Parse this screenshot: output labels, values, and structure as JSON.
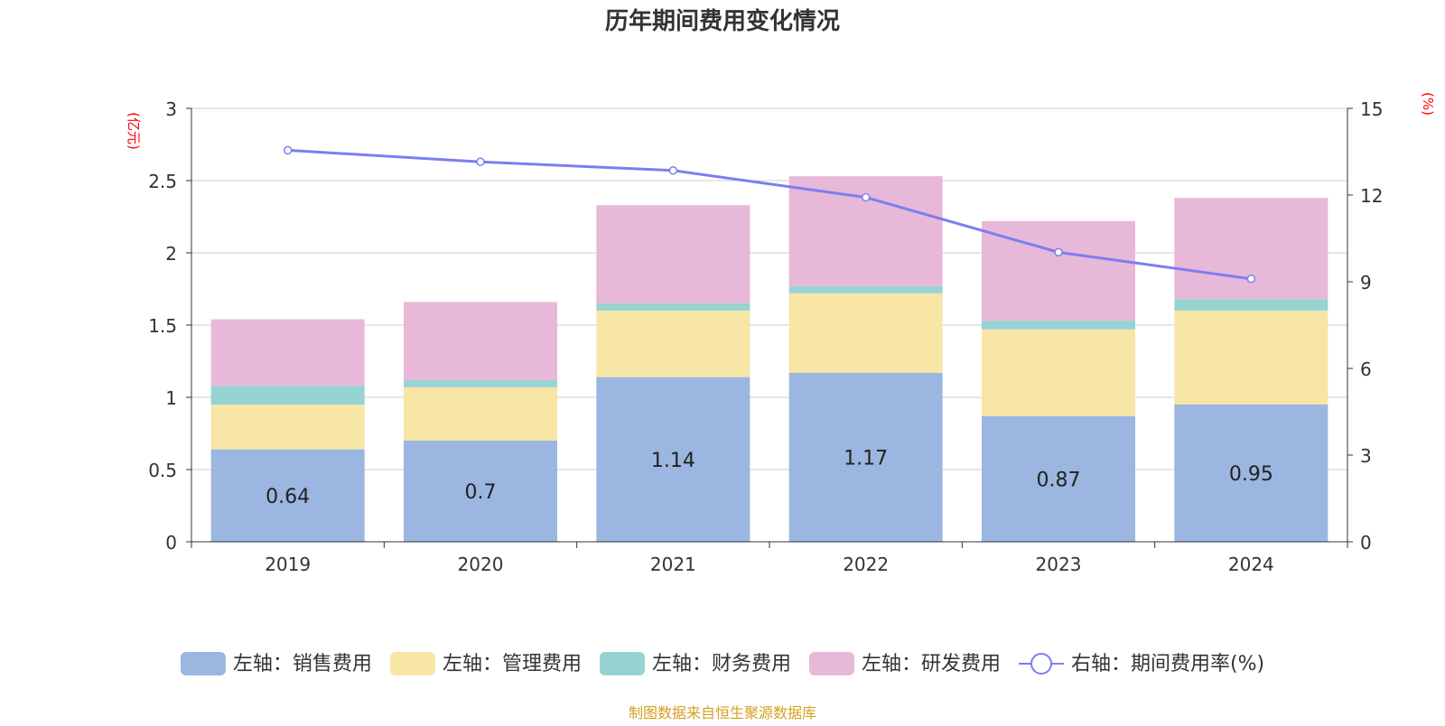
{
  "chart_data": {
    "type": "bar",
    "title": "历年期间费用变化情况",
    "left_axis_unit": "(亿元)",
    "right_axis_unit": "(%)",
    "categories": [
      "2019",
      "2020",
      "2021",
      "2022",
      "2023",
      "2024"
    ],
    "stacked": true,
    "ylim_left": [
      0,
      3
    ],
    "yticks_left": [
      "0",
      "0.5",
      "1",
      "1.5",
      "2",
      "2.5",
      "3"
    ],
    "ylim_right": [
      0,
      15
    ],
    "yticks_right": [
      "0",
      "3",
      "6",
      "9",
      "12",
      "15"
    ],
    "grid": true,
    "legend_position": "bottom",
    "series": [
      {
        "name": "左轴：销售费用",
        "axis": "left",
        "kind": "bar",
        "color": "#9bb6e0",
        "values": [
          0.64,
          0.7,
          1.14,
          1.17,
          0.87,
          0.95
        ],
        "labels": [
          "0.64",
          "0.7",
          "1.14",
          "1.17",
          "0.87",
          "0.95"
        ]
      },
      {
        "name": "左轴：管理费用",
        "axis": "left",
        "kind": "bar",
        "color": "#f7e6a6",
        "values": [
          0.31,
          0.37,
          0.46,
          0.55,
          0.6,
          0.65
        ]
      },
      {
        "name": "左轴：财务费用",
        "axis": "left",
        "kind": "bar",
        "color": "#97d3d3",
        "values": [
          0.13,
          0.05,
          0.05,
          0.05,
          0.06,
          0.08
        ]
      },
      {
        "name": "左轴：研发费用",
        "axis": "left",
        "kind": "bar",
        "color": "#e8b8d8",
        "values": [
          0.46,
          0.54,
          0.68,
          0.76,
          0.69,
          0.7
        ]
      },
      {
        "name": "右轴：期间费用率(%)",
        "axis": "right",
        "kind": "line",
        "color": "#7b7ef0",
        "values": [
          13.55,
          13.15,
          12.85,
          11.92,
          10.02,
          9.1
        ]
      }
    ]
  },
  "footer": {
    "source": "制图数据来自恒生聚源数据库"
  }
}
